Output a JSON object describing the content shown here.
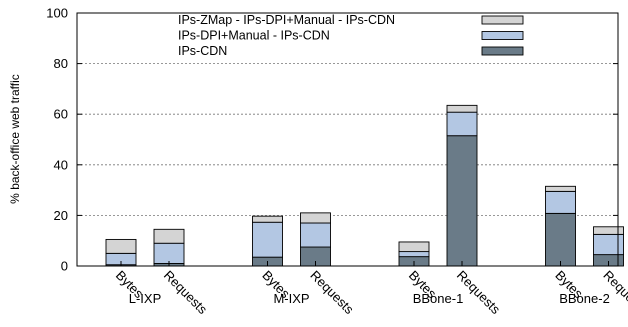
{
  "chart_data": {
    "type": "bar",
    "stacked": true,
    "ylabel": "% back-office web traffic",
    "ylim": [
      0,
      100
    ],
    "yticks": [
      0,
      20,
      40,
      60,
      80,
      100
    ],
    "grid": true,
    "legend_position": "top",
    "groups": [
      {
        "label": "L-IXP",
        "bars": [
          {
            "label": "Bytes",
            "values": [
              0.5,
              4.5,
              5.5
            ]
          },
          {
            "label": "Requests",
            "values": [
              1,
              8,
              5.5
            ]
          }
        ]
      },
      {
        "label": "M-IXP",
        "bars": [
          {
            "label": "Bytes",
            "values": [
              3.5,
              13.8,
              2.4
            ]
          },
          {
            "label": "Requests",
            "values": [
              7.5,
              9.5,
              4
            ]
          }
        ]
      },
      {
        "label": "BBone-1",
        "bars": [
          {
            "label": "Bytes",
            "values": [
              3.7,
              2,
              3.8
            ]
          },
          {
            "label": "Requests",
            "values": [
              51.5,
              9.3,
              2.7
            ]
          }
        ]
      },
      {
        "label": "BBone-2",
        "bars": [
          {
            "label": "Bytes",
            "values": [
              20.8,
              8.7,
              2
            ]
          },
          {
            "label": "Requests",
            "values": [
              4.5,
              8,
              3
            ]
          }
        ]
      }
    ],
    "series": [
      {
        "name": "IPs-CDN",
        "color": "#6a7b88"
      },
      {
        "name": "IPs-DPI+Manual - IPs-CDN",
        "color": "#b3c7e3"
      },
      {
        "name": "IPs-ZMap - IPs-DPI+Manual - IPs-CDN",
        "color": "#d4d4d4"
      }
    ]
  }
}
